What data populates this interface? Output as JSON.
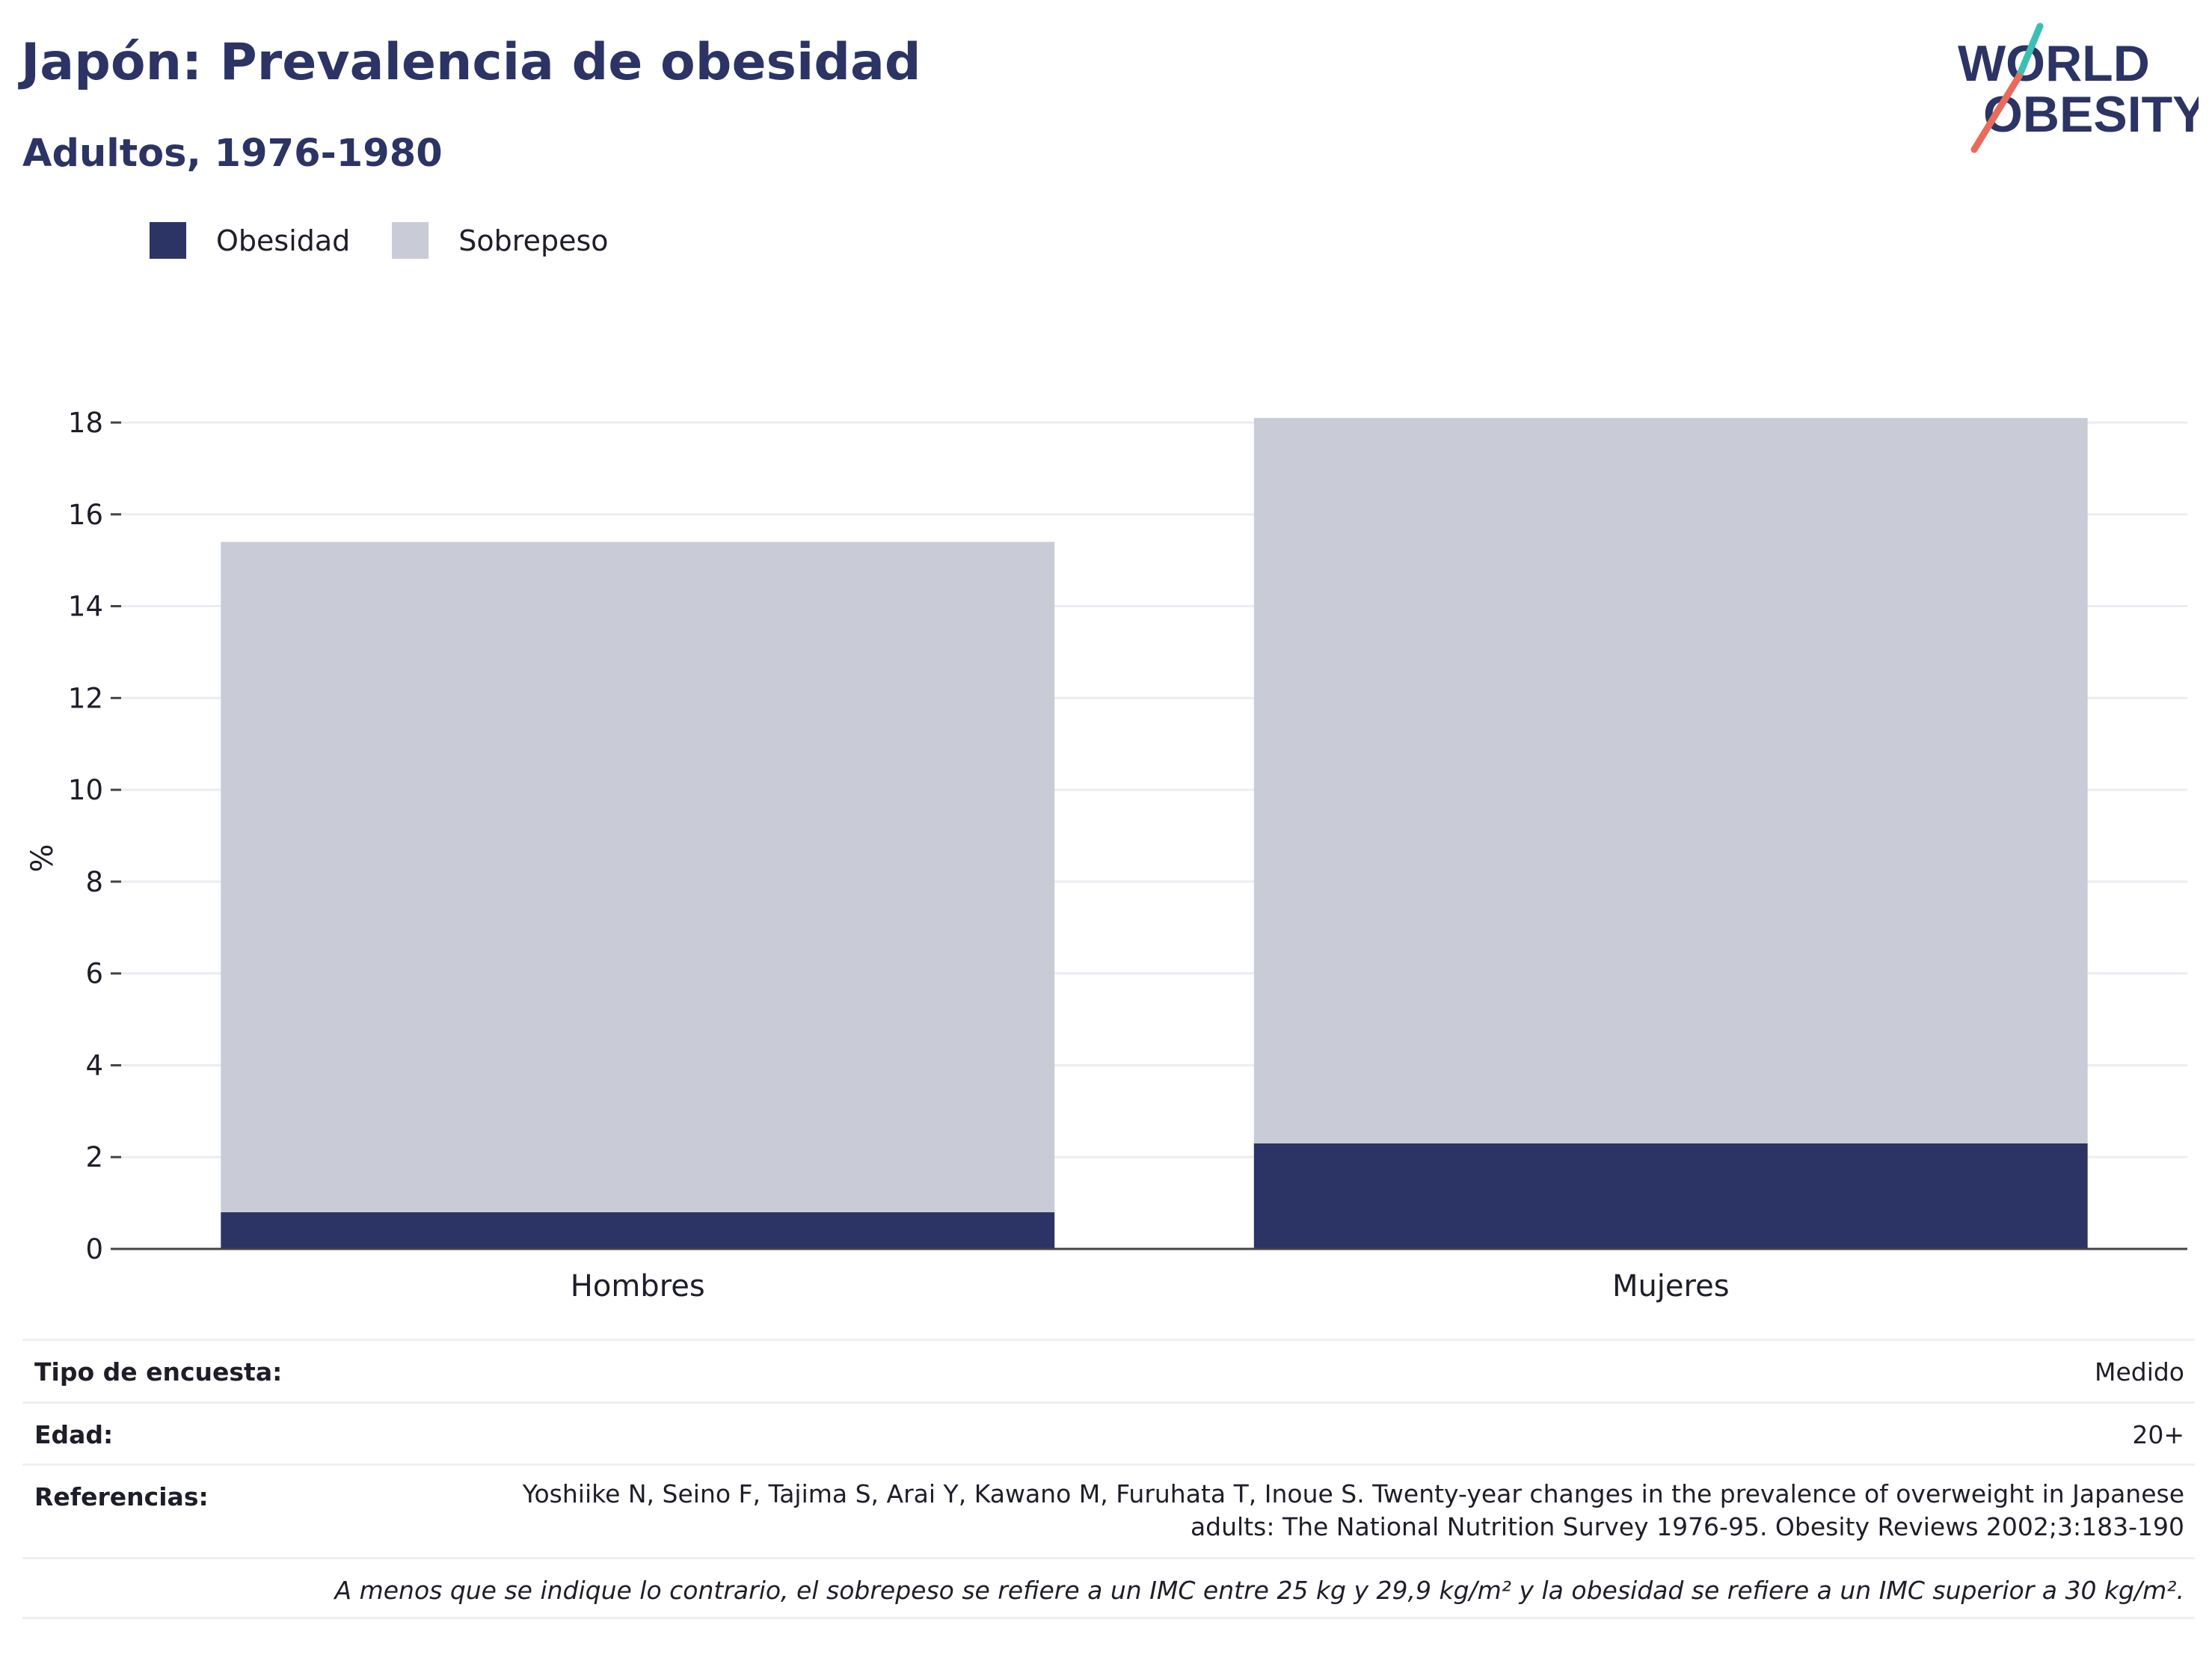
{
  "header": {
    "title": "Japón: Prevalencia de obesidad",
    "subtitle": "Adultos, 1976-1980"
  },
  "logo": {
    "line1": "WORLD",
    "line2": "OBESITY",
    "colors": {
      "text": "#2b3464",
      "slash_top": "#3bbfb4",
      "slash_bottom": "#e96b5c"
    }
  },
  "legend": {
    "items": [
      {
        "label": "Obesidad",
        "color": "#2b3464"
      },
      {
        "label": "Sobrepeso",
        "color": "#c9cbd7"
      }
    ]
  },
  "chart_data": {
    "type": "bar",
    "stacked": true,
    "categories": [
      "Hombres",
      "Mujeres"
    ],
    "series": [
      {
        "name": "Obesidad",
        "values": [
          0.8,
          2.3
        ],
        "color": "#2b3464"
      },
      {
        "name": "Sobrepeso",
        "values": [
          14.6,
          15.8
        ],
        "color": "#c9cbd7"
      }
    ],
    "ylabel": "%",
    "ylim": [
      0,
      18
    ],
    "yticks": [
      0,
      2,
      4,
      6,
      8,
      10,
      12,
      14,
      16,
      18
    ],
    "grid": true,
    "legend_position": "top-left"
  },
  "info": {
    "survey_type_label": "Tipo de encuesta:",
    "survey_type_value": "Medido",
    "age_label": "Edad:",
    "age_value": "20+",
    "references_label": "Referencias:",
    "references_value": "Yoshiike N, Seino F, Tajima S, Arai Y, Kawano M, Furuhata T, Inoue S. Twenty-year changes in the prevalence of overweight in Japanese adults: The National Nutrition Survey 1976-95. Obesity Reviews 2002;3:183-190",
    "note": "A menos que se indique lo contrario, el sobrepeso se refiere a un IMC entre 25 kg y 29,9 kg/m² y la obesidad se refiere a un IMC superior a 30 kg/m²."
  }
}
